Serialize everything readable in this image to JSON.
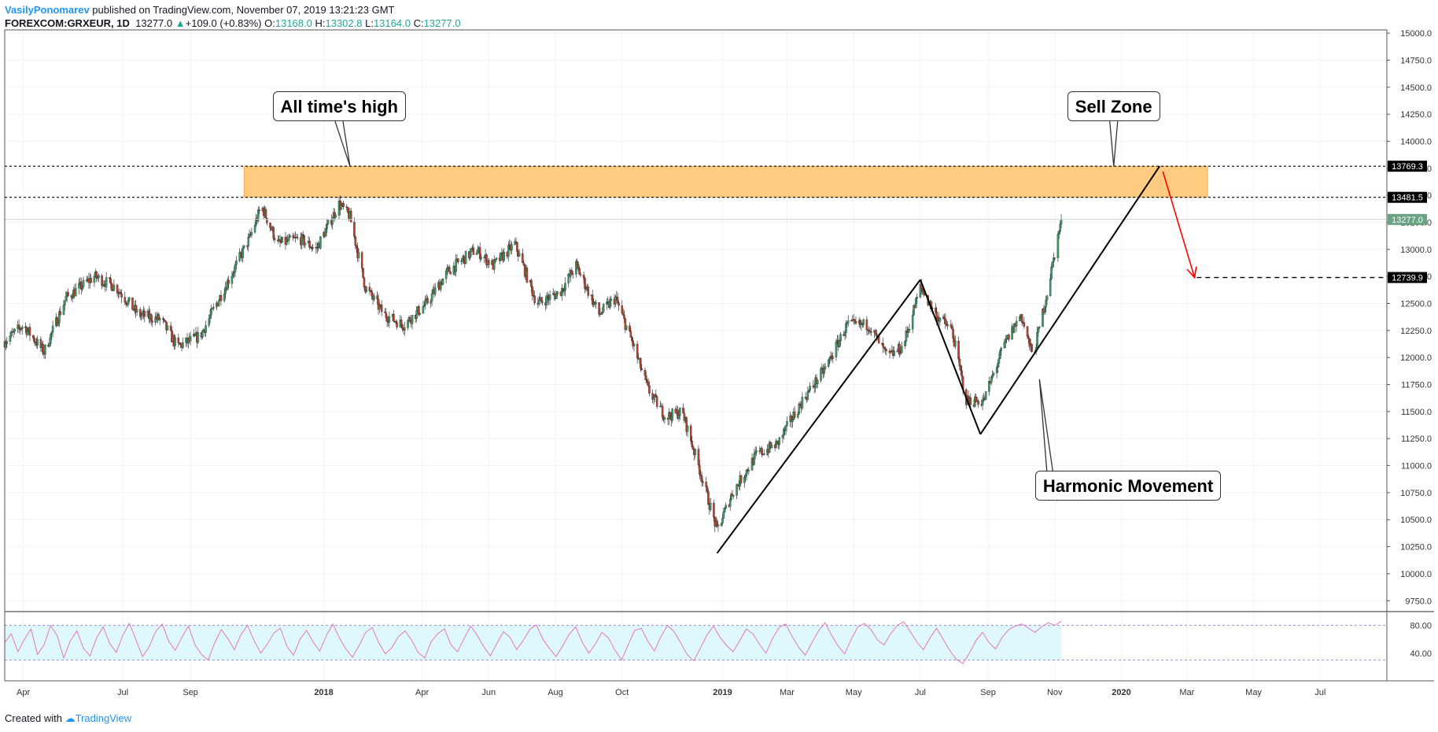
{
  "header": {
    "author": "VasilyPonomarev",
    "published": " published on TradingView.com, November 07, 2019 13:21:23 GMT",
    "symbol": "FOREXCOM:GRXEUR, 1D",
    "last": "13277.0",
    "change": "+109.0 (+0.83%)",
    "o_label": "O:",
    "o_value": "13168.0",
    "h_label": "H:",
    "h_value": "13302.8",
    "l_label": "L:",
    "l_value": "13164.0",
    "c_label": "C:",
    "c_value": "13277.0"
  },
  "footer": {
    "created_with": "Created with",
    "brand": "TradingView"
  },
  "colors": {
    "up_candle": "#3d9968",
    "down_candle": "#b7402e",
    "wick": "#333333",
    "zone_fill": "#ffcb80",
    "zone_border": "#f0a030",
    "rsi_line": "#e377c2",
    "rsi_band": "#dff8fb",
    "arrow": "#ff0000",
    "last_price_tag": "#6aa383",
    "level_tag": "#000000"
  },
  "annotations": {
    "ath": "All time's high",
    "sell": "Sell Zone",
    "harmonic": "Harmonic Movement"
  },
  "chart_data": [
    {
      "type": "candlestick",
      "title": "FOREXCOM:GRXEUR, 1D",
      "x_tick_labels": [
        "Apr",
        "Jul",
        "Sep",
        "2018",
        "Apr",
        "Jun",
        "Aug",
        "Oct",
        "2019",
        "Mar",
        "May",
        "Jul",
        "Sep",
        "Nov",
        "2020",
        "Mar",
        "May",
        "Jul"
      ],
      "y_tick_labels": [
        "15000.0",
        "14750.0",
        "14500.0",
        "14250.0",
        "14000.0",
        "13750.0",
        "13500.0",
        "13250.0",
        "13000.0",
        "12750.0",
        "12500.0",
        "12250.0",
        "12000.0",
        "11750.0",
        "11500.0",
        "11250.0",
        "11000.0",
        "10750.0",
        "10500.0",
        "10250.0",
        "10000.0",
        "9750.0"
      ],
      "ylim": [
        9650,
        15030
      ],
      "x_range": [
        "2017-03-15",
        "2020-08-31"
      ],
      "grid": true,
      "price_path": [
        [
          "2017-03-15",
          12150
        ],
        [
          "2017-04-01",
          12300
        ],
        [
          "2017-04-20",
          12050
        ],
        [
          "2017-05-10",
          12550
        ],
        [
          "2017-06-05",
          12750
        ],
        [
          "2017-06-25",
          12650
        ],
        [
          "2017-07-15",
          12400
        ],
        [
          "2017-08-05",
          12350
        ],
        [
          "2017-08-20",
          12100
        ],
        [
          "2017-09-10",
          12200
        ],
        [
          "2017-10-05",
          12700
        ],
        [
          "2017-10-25",
          13100
        ],
        [
          "2017-11-05",
          13400
        ],
        [
          "2017-11-20",
          13050
        ],
        [
          "2017-12-10",
          13100
        ],
        [
          "2017-12-25",
          13000
        ],
        [
          "2018-01-15",
          13420
        ],
        [
          "2018-01-25",
          13300
        ],
        [
          "2018-02-08",
          12650
        ],
        [
          "2018-02-25",
          12400
        ],
        [
          "2018-03-15",
          12300
        ],
        [
          "2018-04-05",
          12500
        ],
        [
          "2018-04-25",
          12800
        ],
        [
          "2018-05-20",
          13000
        ],
        [
          "2018-06-05",
          12850
        ],
        [
          "2018-06-25",
          13050
        ],
        [
          "2018-07-15",
          12500
        ],
        [
          "2018-08-05",
          12600
        ],
        [
          "2018-08-20",
          12850
        ],
        [
          "2018-09-10",
          12400
        ],
        [
          "2018-09-25",
          12550
        ],
        [
          "2018-10-10",
          12150
        ],
        [
          "2018-10-25",
          11700
        ],
        [
          "2018-11-10",
          11450
        ],
        [
          "2018-11-25",
          11500
        ],
        [
          "2018-12-10",
          11000
        ],
        [
          "2018-12-27",
          10400
        ],
        [
          "2019-01-10",
          10750
        ],
        [
          "2019-02-01",
          11100
        ],
        [
          "2019-02-20",
          11200
        ],
        [
          "2019-03-15",
          11600
        ],
        [
          "2019-04-05",
          11900
        ],
        [
          "2019-04-25",
          12300
        ],
        [
          "2019-05-15",
          12300
        ],
        [
          "2019-06-01",
          12000
        ],
        [
          "2019-06-15",
          12100
        ],
        [
          "2019-07-01",
          12650
        ],
        [
          "2019-07-15",
          12400
        ],
        [
          "2019-07-30",
          12250
        ],
        [
          "2019-08-12",
          11600
        ],
        [
          "2019-08-28",
          11600
        ],
        [
          "2019-09-15",
          12100
        ],
        [
          "2019-10-01",
          12400
        ],
        [
          "2019-10-12",
          12000
        ],
        [
          "2019-10-25",
          12600
        ],
        [
          "2019-11-07",
          13277
        ]
      ],
      "last_close": 13277.0,
      "zone": {
        "low": 13481.5,
        "high": 13769.3,
        "from": "2017-10-20",
        "to": "2020-03-20",
        "label": "Sell Zone"
      },
      "levels": [
        {
          "value": 13769.3,
          "label": "13769.3"
        },
        {
          "value": 13481.5,
          "label": "13481.5"
        },
        {
          "value": 12739.9,
          "label": "12739.9",
          "from": "2020-03-10"
        }
      ],
      "last_price_label": "13277.0",
      "harmonic_lines": [
        [
          [
            "2018-12-27",
            10190
          ],
          [
            "2019-07-01",
            12720
          ]
        ],
        [
          [
            "2019-07-01",
            12720
          ],
          [
            "2019-08-25",
            11290
          ]
        ],
        [
          [
            "2019-08-25",
            11290
          ],
          [
            "2020-02-05",
            13769.3
          ]
        ]
      ],
      "projection_arrow": [
        [
          "2020-02-08",
          13720
        ],
        [
          "2020-03-08",
          12739.9
        ]
      ]
    },
    {
      "type": "line",
      "title": "",
      "ylim": [
        0,
        100
      ],
      "y_tick_labels": [
        "80.00",
        "40.00"
      ],
      "band": [
        30,
        80
      ],
      "series": [
        {
          "values": [
            55,
            68,
            42,
            60,
            75,
            38,
            52,
            80,
            65,
            33,
            58,
            72,
            47,
            36,
            62,
            78,
            54,
            41,
            66,
            83,
            59,
            35,
            49,
            71,
            82,
            57,
            44,
            63,
            79,
            52,
            38,
            30,
            55,
            74,
            61,
            45,
            67,
            80,
            58,
            40,
            53,
            69,
            76,
            50,
            37,
            60,
            73,
            56,
            43,
            65,
            82,
            62,
            46,
            34,
            51,
            70,
            77,
            55,
            39,
            48,
            64,
            72,
            59,
            41,
            33,
            57,
            68,
            75,
            52,
            42,
            61,
            79,
            66,
            49,
            36,
            54,
            71,
            63,
            45,
            58,
            74,
            81,
            60,
            47,
            35,
            50,
            67,
            78,
            56,
            40,
            53,
            70,
            62,
            44,
            30,
            52,
            73,
            76,
            57,
            43,
            64,
            80,
            71,
            55,
            38,
            29,
            47,
            66,
            79,
            63,
            51,
            42,
            58,
            75,
            68,
            53,
            40,
            61,
            77,
            82,
            64,
            48,
            37,
            55,
            72,
            84,
            66,
            50,
            39,
            60,
            78,
            83,
            74,
            59,
            52,
            68,
            80,
            85,
            71,
            56,
            45,
            62,
            76,
            60,
            44,
            31,
            25,
            40,
            58,
            70,
            55,
            46,
            63,
            74,
            79,
            82,
            76,
            70,
            78,
            84,
            80,
            86
          ]
        }
      ]
    }
  ]
}
